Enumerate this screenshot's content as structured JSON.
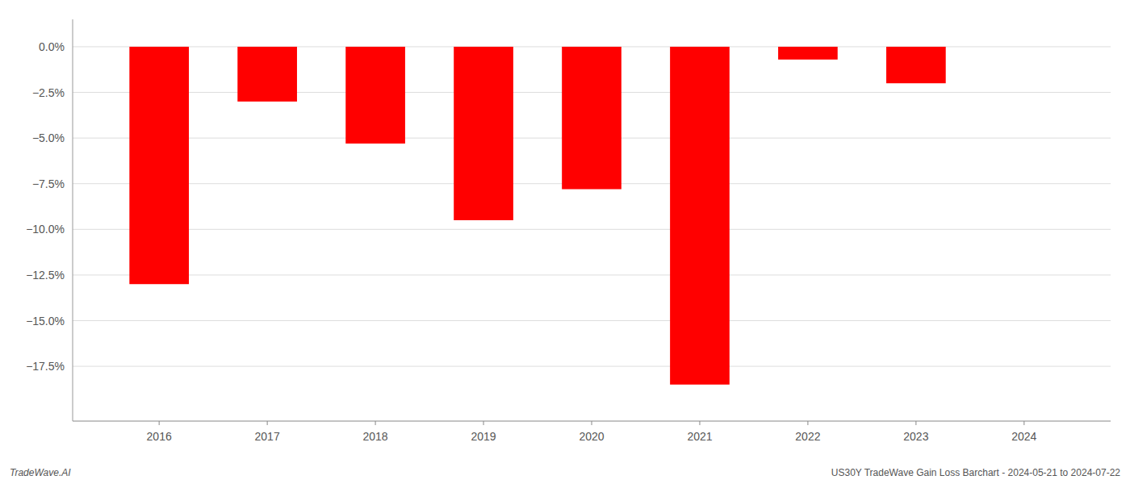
{
  "chart_data": {
    "type": "bar",
    "x": [
      2016,
      2017,
      2018,
      2019,
      2020,
      2021,
      2022,
      2023,
      2024
    ],
    "values": [
      -13.0,
      -3.0,
      -5.3,
      -9.5,
      -7.8,
      -18.5,
      -0.7,
      -2.0,
      0.0
    ],
    "color": "#ff0000",
    "xlim": [
      2015.2,
      2024.8
    ],
    "xticks": [
      2016,
      2017,
      2018,
      2019,
      2020,
      2021,
      2022,
      2023,
      2024
    ],
    "ylim": [
      -20.5,
      1.5
    ],
    "yticks": [
      {
        "value": 0.0,
        "label": "0.0%"
      },
      {
        "value": -2.5,
        "label": "−2.5%"
      },
      {
        "value": -5.0,
        "label": "−5.0%"
      },
      {
        "value": -7.5,
        "label": "−7.5%"
      },
      {
        "value": -10.0,
        "label": "−10.0%"
      },
      {
        "value": -12.5,
        "label": "−12.5%"
      },
      {
        "value": -15.0,
        "label": "−15.0%"
      },
      {
        "value": -17.5,
        "label": "−17.5%"
      }
    ],
    "grid": true,
    "annotations": [
      "TradeWave.AI",
      "US30Y TradeWave Gain Loss Barchart - 2024-05-21 to 2024-07-22"
    ]
  }
}
